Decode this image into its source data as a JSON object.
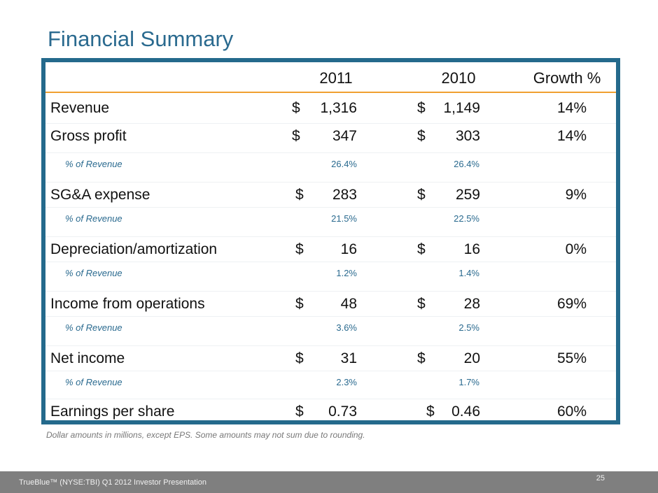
{
  "title": "Financial Summary",
  "table": {
    "headers": [
      "2011",
      "2010",
      "Growth %"
    ],
    "rows": [
      {
        "type": "main",
        "label": "Revenue",
        "c1_cur": "$",
        "c1": "1,316",
        "c2_cur": "$",
        "c2": "1,149",
        "growth": "14%"
      },
      {
        "type": "main",
        "label": "Gross profit",
        "c1_cur": "$",
        "c1": "347",
        "c2_cur": "$",
        "c2": "303",
        "growth": "14%"
      },
      {
        "type": "sub",
        "label": "% of Revenue",
        "c1": "26.4%",
        "c2": "26.4%"
      },
      {
        "type": "main",
        "label": "SG&A expense",
        "c1_cur": "$",
        "c1": "283",
        "c2_cur": "$",
        "c2": "259",
        "growth": "9%"
      },
      {
        "type": "sub",
        "label": "% of Revenue",
        "c1": "21.5%",
        "c2": "22.5%"
      },
      {
        "type": "main",
        "label": "Depreciation/amortization",
        "c1_cur": "$",
        "c1": "16",
        "c2_cur": "$",
        "c2": "16",
        "growth": "0%"
      },
      {
        "type": "sub",
        "label": "% of Revenue",
        "c1": "1.2%",
        "c2": "1.4%"
      },
      {
        "type": "main",
        "label": "Income from operations",
        "c1_cur": "$",
        "c1": "48",
        "c2_cur": "$",
        "c2": "28",
        "growth": "69%"
      },
      {
        "type": "sub",
        "label": "% of Revenue",
        "c1": "3.6%",
        "c2": "2.5%"
      },
      {
        "type": "main",
        "label": "Net income",
        "c1_cur": "$",
        "c1": "31",
        "c2_cur": "$",
        "c2": "20",
        "growth": "55%"
      },
      {
        "type": "sub",
        "label": "% of Revenue",
        "c1": "2.3%",
        "c2": "1.7%"
      },
      {
        "type": "main",
        "label": "Earnings per share",
        "c1_cur": "$",
        "c1": "0.73",
        "c2_cur": "$",
        "c2": "0.46",
        "growth": "60%"
      }
    ]
  },
  "note": "Dollar amounts in millions, except EPS.  Some amounts may not sum due to rounding.",
  "footer": {
    "text": "TrueBlue™ (NYSE:TBI) Q1 2012 Investor Presentation",
    "page": "25"
  }
}
